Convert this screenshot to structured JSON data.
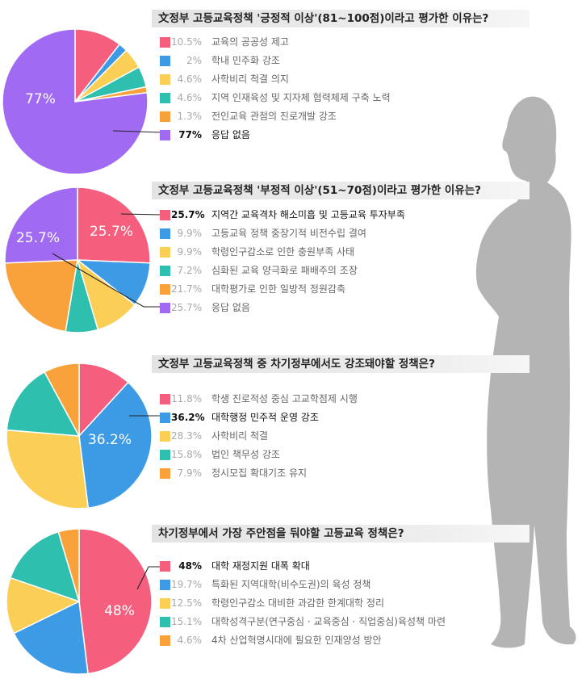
{
  "colors": {
    "pink": "#f55f7d",
    "blue": "#3d9be6",
    "yellow": "#fbcf55",
    "teal": "#2fbfae",
    "orange": "#f9a23b",
    "purple": "#a16af3"
  },
  "chart_data": [
    {
      "type": "pie",
      "title": "文정부 고등교육정책 '긍정적 이상'(81~100점)이라고 평가한 이유는?",
      "highlight_index": 5,
      "center_label": "77%",
      "categories": [
        "교육의 공공성 제고",
        "학내 민주화 강조",
        "사학비리 척결 의지",
        "지역 인재육성 및 지자체 협력체제 구축 노력",
        "전인교육 관점의 진로개발 강조",
        "응답 없음"
      ],
      "values": [
        10.5,
        2,
        4.6,
        4.6,
        1.3,
        77
      ],
      "value_labels": [
        "10.5%",
        "2%",
        "4.6%",
        "4.6%",
        "1.3%",
        "77%"
      ],
      "slice_colors": [
        "pink",
        "blue",
        "yellow",
        "teal",
        "orange",
        "purple"
      ]
    },
    {
      "type": "pie",
      "title": "文정부 고등교육정책 '부정적 이상'(51~70점)이라고 평가한 이유는?",
      "highlight_index": 0,
      "center_label": "25.7%",
      "secondary_label": "25.7%",
      "categories": [
        "지역간 교육격차 해소미흡 및 고등교육 투자부족",
        "고등교육 정책 중장기적 비전수립 결여",
        "학령인구감소로 인한 충원부족 사태",
        "심화된 교육 양극화로 패배주의 조장",
        "대학평가로 인한 일방적 정원감축",
        "응답 없음"
      ],
      "values": [
        25.7,
        9.9,
        9.9,
        7.2,
        21.7,
        25.7
      ],
      "value_labels": [
        "25.7%",
        "9.9%",
        "9.9%",
        "7.2%",
        "21.7%",
        "25.7%"
      ],
      "slice_colors": [
        "pink",
        "blue",
        "yellow",
        "teal",
        "orange",
        "purple"
      ]
    },
    {
      "type": "pie",
      "title": "文정부 고등교육정책 중 차기정부에서도 강조돼야할 정책은?",
      "highlight_index": 1,
      "center_label": "36.2%",
      "categories": [
        "학생 진로적성 중심 고교학점제 시행",
        "대학행정 민주적 운영 강조",
        "사학비리 척결",
        "법인 책무성 강조",
        "정시모집 확대기조 유지"
      ],
      "values": [
        11.8,
        36.2,
        28.3,
        15.8,
        7.9
      ],
      "value_labels": [
        "11.8%",
        "36.2%",
        "28.3%",
        "15.8%",
        "7.9%"
      ],
      "slice_colors": [
        "pink",
        "blue",
        "yellow",
        "teal",
        "orange"
      ]
    },
    {
      "type": "pie",
      "title": "차기정부에서 가장 주안점을 둬야할 고등교육 정책은?",
      "highlight_index": 0,
      "center_label": "48%",
      "categories": [
        "대학 재정지원 대폭 확대",
        "특화된 지역대학(비수도권)의 육성 정책",
        "학령인구감소 대비한 과감한 한계대학 정리",
        "대학성격구분(연구중심 · 교육중심 · 직업중심)육성책 마련",
        "4차 산업혁명시대에 필요한 인재양성 방안"
      ],
      "values": [
        48,
        19.7,
        12.5,
        15.1,
        4.6
      ],
      "value_labels": [
        "48%",
        "19.7%",
        "12.5%",
        "15.1%",
        "4.6%"
      ],
      "slice_colors": [
        "pink",
        "blue",
        "yellow",
        "teal",
        "orange"
      ]
    }
  ]
}
